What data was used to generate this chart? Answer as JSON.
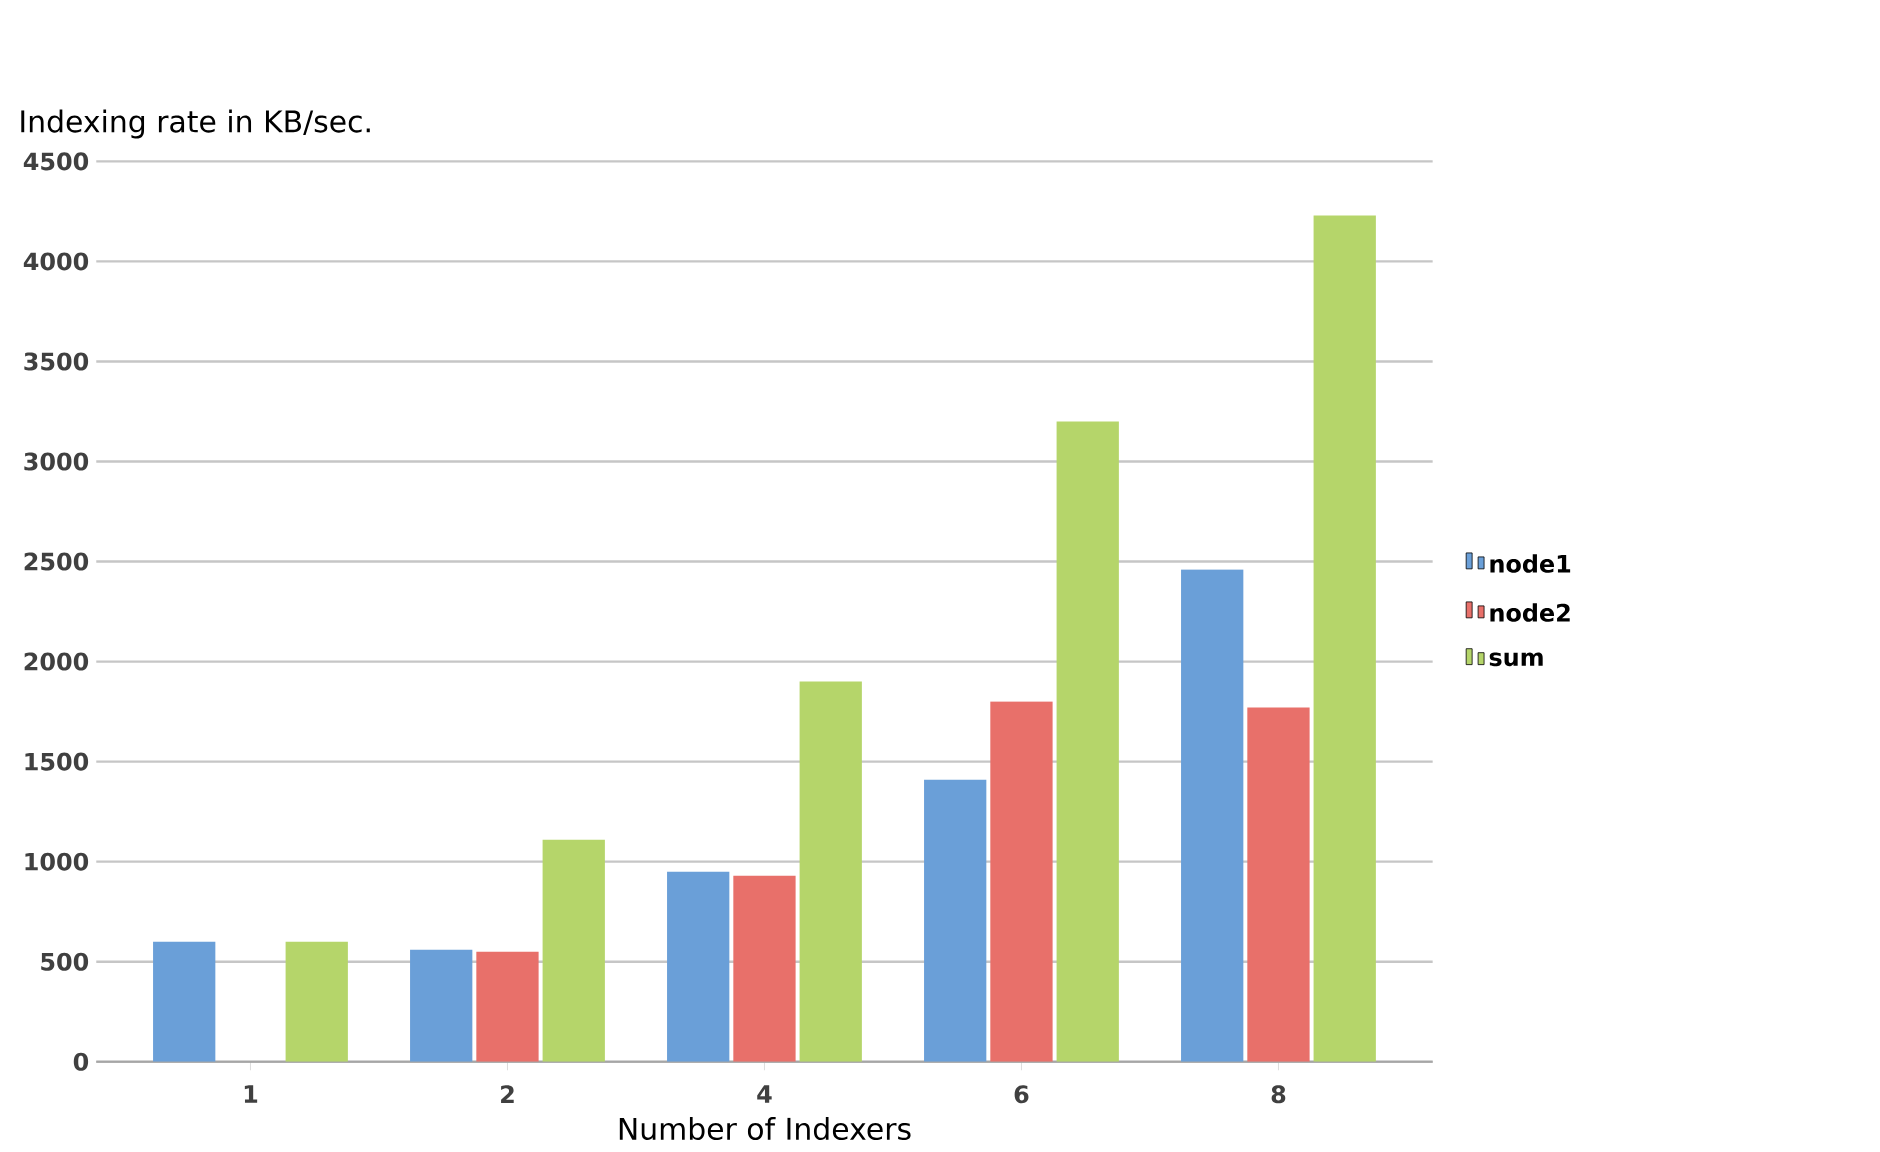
{
  "chart_data": {
    "type": "bar",
    "title": "Indexing rate in KB/sec.",
    "xlabel": "Number of Indexers",
    "categories": [
      "1",
      "2",
      "4",
      "6",
      "8"
    ],
    "series": [
      {
        "name": "node1",
        "color": "#6a9fd8",
        "values": [
          600,
          560,
          950,
          1410,
          2460
        ]
      },
      {
        "name": "node2",
        "color": "#e8706a",
        "values": [
          null,
          550,
          930,
          1800,
          1770
        ]
      },
      {
        "name": "sum",
        "color": "#b5d56a",
        "values": [
          600,
          1110,
          1900,
          3200,
          4230
        ]
      }
    ],
    "ylim": [
      0,
      4500
    ],
    "yticks": [
      0,
      500,
      1000,
      1500,
      2000,
      2500,
      3000,
      3500,
      4000,
      4500
    ],
    "grid": "y",
    "legend": "right"
  }
}
